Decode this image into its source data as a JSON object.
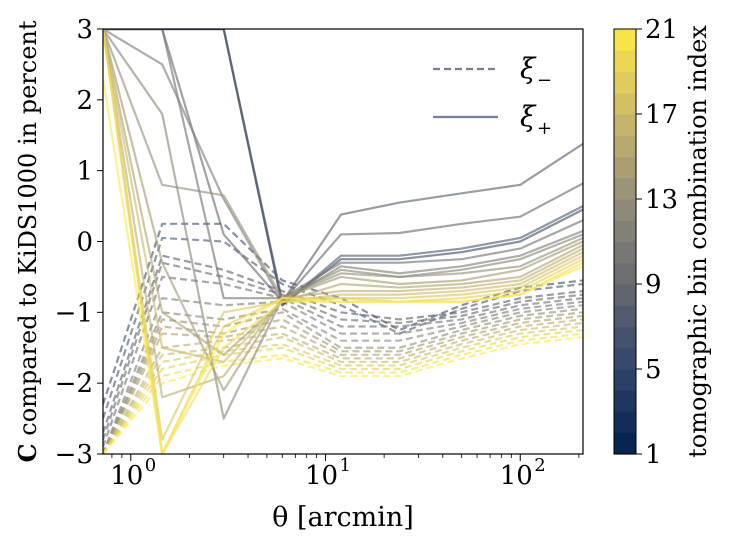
{
  "chart_data": {
    "type": "line",
    "title": "",
    "xlabel": "θ [arcmin]",
    "ylabel_bold": "C",
    "ylabel_rest": "compared to KiDS1000 in percent",
    "x_scale": "log",
    "xlim": [
      0.72,
      210
    ],
    "ylim": [
      -3,
      3
    ],
    "x_ticks": [
      {
        "value": 1,
        "label": "10",
        "exp": "0"
      },
      {
        "value": 10,
        "label": "10",
        "exp": "1"
      },
      {
        "value": 100,
        "label": "10",
        "exp": "2"
      }
    ],
    "y_ticks": [
      {
        "value": 3,
        "label": "3"
      },
      {
        "value": 2,
        "label": "2"
      },
      {
        "value": 1,
        "label": "1"
      },
      {
        "value": 0,
        "label": "0"
      },
      {
        "value": -1,
        "label": "−1"
      },
      {
        "value": -2,
        "label": "−2"
      },
      {
        "value": -3,
        "label": "−3"
      }
    ],
    "x": [
      0.72,
      1.45,
      3.0,
      6.0,
      12.0,
      24.0,
      50.0,
      100.0,
      210.0
    ],
    "legend": {
      "position": "top-right",
      "entries": [
        {
          "label": "ξ",
          "sub": "−",
          "style": "dashed"
        },
        {
          "label": "ξ",
          "sub": "+",
          "style": "solid"
        }
      ]
    },
    "colorbar": {
      "label": "tomographic bin combination index",
      "min": 1,
      "max": 21,
      "ticks": [
        "1",
        "5",
        "9",
        "13",
        "17",
        "21"
      ],
      "tick_values": [
        1,
        5,
        9,
        13,
        17,
        21
      ],
      "colormap": [
        "#00204c",
        "#31446b",
        "#666970",
        "#958f78",
        "#cbba69",
        "#ffe945"
      ]
    },
    "series_xi_plus": [
      {
        "index": 6,
        "values": [
          3,
          3,
          3,
          -0.9,
          -0.25,
          -0.25,
          -0.15,
          0.0,
          0.45
        ]
      },
      {
        "index": 7,
        "values": [
          3,
          3,
          3,
          -0.9,
          -0.2,
          -0.2,
          -0.1,
          0.05,
          0.5
        ]
      },
      {
        "index": 8,
        "values": [
          3,
          3,
          3,
          -0.85,
          0.38,
          0.55,
          0.68,
          0.8,
          1.38
        ]
      },
      {
        "index": 9,
        "values": [
          3,
          3,
          0.1,
          -0.85,
          0.1,
          0.12,
          0.25,
          0.35,
          0.82
        ]
      },
      {
        "index": 10,
        "values": [
          3,
          3,
          -0.8,
          -0.8,
          -0.3,
          -0.3,
          -0.25,
          -0.1,
          0.3
        ]
      },
      {
        "index": 11,
        "values": [
          3,
          2.5,
          0.6,
          -0.85,
          -0.35,
          -0.45,
          -0.35,
          -0.2,
          0.15
        ]
      },
      {
        "index": 12,
        "values": [
          3,
          1.8,
          -2.5,
          -0.8,
          -0.4,
          -0.5,
          -0.4,
          -0.25,
          0.1
        ]
      },
      {
        "index": 13,
        "values": [
          3,
          0.8,
          0.65,
          -0.8,
          -0.45,
          -0.5,
          -0.45,
          -0.35,
          0.05
        ]
      },
      {
        "index": 14,
        "values": [
          3,
          -0.3,
          -2.1,
          -0.8,
          -0.5,
          -0.6,
          -0.55,
          -0.4,
          0.0
        ]
      },
      {
        "index": 15,
        "values": [
          3,
          -1.0,
          -1.6,
          -0.85,
          -0.6,
          -0.65,
          -0.6,
          -0.5,
          -0.05
        ]
      },
      {
        "index": 16,
        "values": [
          3,
          -2.2,
          -1.9,
          -0.8,
          -0.7,
          -0.7,
          -0.65,
          -0.55,
          -0.1
        ]
      },
      {
        "index": 17,
        "values": [
          3,
          -1.5,
          -1.7,
          -0.85,
          -0.75,
          -0.75,
          -0.7,
          -0.6,
          -0.15
        ]
      },
      {
        "index": 18,
        "values": [
          3,
          -2.8,
          -1.0,
          -0.85,
          -0.8,
          -0.8,
          -0.75,
          -0.65,
          -0.2
        ]
      },
      {
        "index": 19,
        "values": [
          3,
          -3,
          -1.2,
          -0.8,
          -0.8,
          -0.85,
          -0.8,
          -0.7,
          -0.25
        ]
      },
      {
        "index": 20,
        "values": [
          3,
          -3,
          -1.5,
          -0.85,
          -0.85,
          -0.85,
          -0.85,
          -0.75,
          -0.3
        ]
      },
      {
        "index": 21,
        "values": [
          2.3,
          -3,
          -1.3,
          -0.8,
          -0.85,
          -0.85,
          -0.85,
          -0.75,
          -0.35
        ]
      }
    ],
    "series_xi_minus": [
      {
        "index": 6,
        "values": [
          -2.3,
          0.25,
          0.25,
          -0.55,
          -0.8,
          -1.25,
          -0.9,
          -0.65,
          -0.55
        ]
      },
      {
        "index": 7,
        "values": [
          -2.5,
          0.05,
          0.0,
          -0.6,
          -0.9,
          -1.3,
          -0.95,
          -0.7,
          -0.6
        ]
      },
      {
        "index": 8,
        "values": [
          -2.7,
          -0.2,
          -0.4,
          -0.7,
          -1.0,
          -1.1,
          -1.0,
          -0.8,
          -0.7
        ]
      },
      {
        "index": 9,
        "values": [
          -2.8,
          -0.3,
          -0.5,
          -0.75,
          -1.1,
          -1.15,
          -1.05,
          -0.85,
          -0.75
        ]
      },
      {
        "index": 10,
        "values": [
          -2.9,
          -0.5,
          -0.6,
          -0.8,
          -1.2,
          -1.2,
          -1.1,
          -0.9,
          -0.8
        ]
      },
      {
        "index": 11,
        "values": [
          -3,
          -0.8,
          -0.9,
          -0.85,
          -1.3,
          -1.3,
          -1.15,
          -0.95,
          -0.85
        ]
      },
      {
        "index": 12,
        "values": [
          -3,
          -1.0,
          -1.1,
          -0.95,
          -1.4,
          -1.4,
          -1.2,
          -1.0,
          -0.9
        ]
      },
      {
        "index": 13,
        "values": [
          -3,
          -1.1,
          -1.2,
          -1.0,
          -1.5,
          -1.5,
          -1.25,
          -1.05,
          -0.95
        ]
      },
      {
        "index": 14,
        "values": [
          -3,
          -1.2,
          -1.3,
          -1.1,
          -1.55,
          -1.55,
          -1.3,
          -1.1,
          -1.0
        ]
      },
      {
        "index": 15,
        "values": [
          -3,
          -1.3,
          -1.35,
          -1.2,
          -1.6,
          -1.6,
          -1.35,
          -1.15,
          -1.05
        ]
      },
      {
        "index": 16,
        "values": [
          -3,
          -1.5,
          -1.4,
          -1.3,
          -1.65,
          -1.65,
          -1.4,
          -1.2,
          -1.1
        ]
      },
      {
        "index": 17,
        "values": [
          -3,
          -1.6,
          -1.5,
          -1.35,
          -1.7,
          -1.7,
          -1.45,
          -1.25,
          -1.15
        ]
      },
      {
        "index": 18,
        "values": [
          -3,
          -1.7,
          -1.55,
          -1.45,
          -1.75,
          -1.75,
          -1.5,
          -1.3,
          -1.2
        ]
      },
      {
        "index": 19,
        "values": [
          -3,
          -1.8,
          -1.6,
          -1.5,
          -1.8,
          -1.8,
          -1.55,
          -1.35,
          -1.25
        ]
      },
      {
        "index": 20,
        "values": [
          -3,
          -1.9,
          -1.7,
          -1.6,
          -1.85,
          -1.85,
          -1.6,
          -1.4,
          -1.3
        ]
      },
      {
        "index": 21,
        "values": [
          -3,
          -2.0,
          -1.75,
          -1.65,
          -1.9,
          -1.9,
          -1.65,
          -1.45,
          -1.35
        ]
      }
    ]
  }
}
